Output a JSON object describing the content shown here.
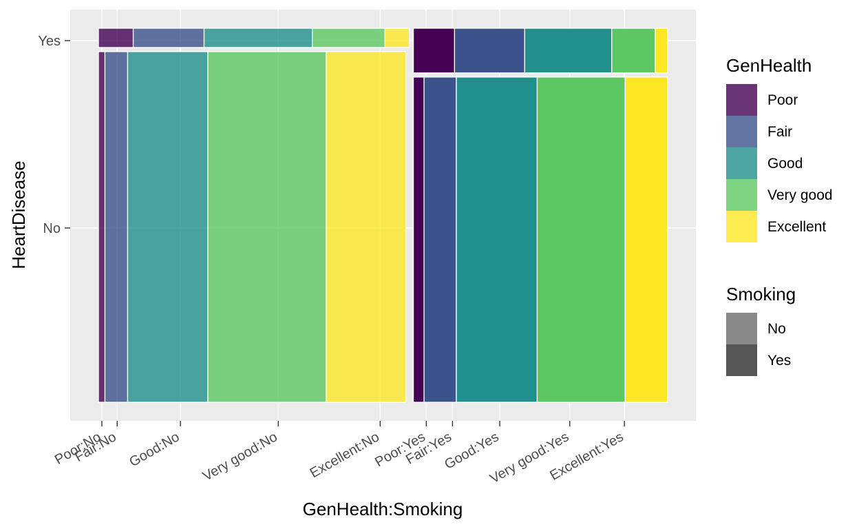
{
  "chart_data": {
    "type": "mosaic",
    "xlabel": "GenHealth:Smoking",
    "ylabel": "HeartDisease",
    "y_categories": [
      "No",
      "Yes"
    ],
    "x_categories": [
      "Poor:No",
      "Fair:No",
      "Good:No",
      "Very good:No",
      "Excellent:No",
      "Poor:Yes",
      "Fair:Yes",
      "Good:Yes",
      "Very good:Yes",
      "Excellent:Yes"
    ],
    "x_tick_positions": [
      0.006,
      0.033,
      0.144,
      0.316,
      0.495,
      0.576,
      0.622,
      0.705,
      0.828,
      0.924
    ],
    "grid": true,
    "legend_position": "right",
    "smoking_groups": [
      {
        "smoking": "No",
        "share": 0.55,
        "heartdisease_yes_share": 0.057,
        "no_row_widths": [
          0.021,
          0.073,
          0.258,
          0.381,
          0.256
        ],
        "yes_row_widths": [
          0.112,
          0.228,
          0.348,
          0.234,
          0.078
        ]
      },
      {
        "smoking": "Yes",
        "share": 0.45,
        "heartdisease_yes_share": 0.125,
        "no_row_widths": [
          0.042,
          0.127,
          0.318,
          0.346,
          0.167
        ],
        "yes_row_widths": [
          0.162,
          0.276,
          0.342,
          0.171,
          0.049
        ]
      }
    ],
    "legends": [
      {
        "title": "GenHealth",
        "items": [
          {
            "label": "Poor",
            "color": "#440154"
          },
          {
            "label": "Fair",
            "color": "#3B528B"
          },
          {
            "label": "Good",
            "color": "#21908C"
          },
          {
            "label": "Very good",
            "color": "#5DC863"
          },
          {
            "label": "Excellent",
            "color": "#FDE725"
          }
        ]
      },
      {
        "title": "Smoking",
        "items": [
          {
            "label": "No",
            "color": "#898989"
          },
          {
            "label": "Yes",
            "color": "#555555"
          }
        ]
      }
    ],
    "alpha": {
      "No": 0.8,
      "Yes": 1.0
    },
    "panel_background": "#EBEBEB",
    "grid_color": "#FFFFFF"
  }
}
